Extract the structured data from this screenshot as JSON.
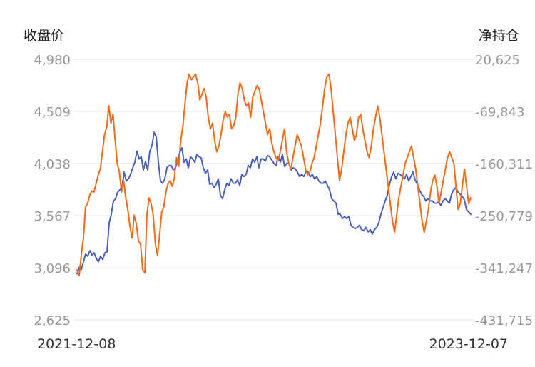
{
  "chart_data": {
    "type": "line",
    "left_axis_title": "收盘价",
    "right_axis_title": "净持仓",
    "x_start_label": "2021-12-08",
    "x_end_label": "2023-12-07",
    "left_ticks": [
      "4,980",
      "4,509",
      "4,038",
      "3,567",
      "3,096",
      "2,625"
    ],
    "right_ticks": [
      "20,625",
      "-69,843",
      "-160,311",
      "-250,779",
      "-341,247",
      "-431,715"
    ],
    "left_range": [
      2625,
      4980
    ],
    "right_range": [
      -431715,
      20625
    ],
    "grid": true,
    "series": [
      {
        "axis": "left",
        "color": "#4a5fc1",
        "values": [
          3040,
          3100,
          3080,
          3150,
          3220,
          3200,
          3250,
          3210,
          3230,
          3180,
          3150,
          3200,
          3170,
          3230,
          3240,
          3500,
          3580,
          3700,
          3720,
          3780,
          3800,
          3820,
          3960,
          3880,
          3900,
          3940,
          4000,
          4050,
          4150,
          4080,
          4100,
          3980,
          4060,
          3980,
          4150,
          4200,
          4320,
          4280,
          4050,
          3880,
          3860,
          3900,
          4000,
          4020,
          4020,
          3980,
          4000,
          4060,
          4140,
          4180,
          4050,
          4080,
          4000,
          4100,
          4080,
          4050,
          4120,
          4100,
          4090,
          4000,
          3950,
          3980,
          3850,
          3860,
          3820,
          3850,
          3900,
          3750,
          3720,
          3800,
          3860,
          3840,
          3900,
          3860,
          3860,
          3890,
          3840,
          3940,
          3920,
          3940,
          4020,
          4000,
          4080,
          4050,
          4100,
          4000,
          4080,
          4080,
          4060,
          4110,
          4100,
          4070,
          4040,
          4020,
          4100,
          4050,
          4120,
          4010,
          4040,
          4040,
          3980,
          4000,
          3990,
          3960,
          3920,
          3940,
          3920,
          3970,
          3960,
          3920,
          3940,
          3900,
          3920,
          3880,
          3860,
          3860,
          3880,
          3840,
          3800,
          3720,
          3700,
          3680,
          3580,
          3580,
          3540,
          3560,
          3540,
          3560,
          3480,
          3460,
          3450,
          3460,
          3480,
          3440,
          3430,
          3460,
          3420,
          3440,
          3400,
          3440,
          3460,
          3500,
          3580,
          3640,
          3700,
          3750,
          3850,
          3920,
          3960,
          3900,
          3950,
          3940,
          3920,
          3900,
          3940,
          3880,
          3920,
          3960,
          3890,
          3850,
          3800,
          3760,
          3740,
          3700,
          3720,
          3700,
          3700,
          3680,
          3680,
          3690,
          3660,
          3700,
          3720,
          3700,
          3680,
          3760,
          3800,
          3820,
          3780,
          3760,
          3740,
          3710,
          3620,
          3600,
          3580
        ]
      },
      {
        "axis": "right",
        "color": "#f36b18",
        "values": [
          -345000,
          -355000,
          -320000,
          -290000,
          -235000,
          -230000,
          -215000,
          -208000,
          -210000,
          -195000,
          -180000,
          -170000,
          -140000,
          -110000,
          -98000,
          -60000,
          -90000,
          -75000,
          -120000,
          -160000,
          -175000,
          -210000,
          -190000,
          -220000,
          -240000,
          -270000,
          -290000,
          -250000,
          -265000,
          -295000,
          -300000,
          -345000,
          -350000,
          -250000,
          -220000,
          -230000,
          -250000,
          -300000,
          -320000,
          -285000,
          -245000,
          -235000,
          -210000,
          -195000,
          -190000,
          -200000,
          -185000,
          -150000,
          -165000,
          -120000,
          -95000,
          -55000,
          -20000,
          -5000,
          -15000,
          -10000,
          -5000,
          -20000,
          -50000,
          -40000,
          -30000,
          -45000,
          -80000,
          -100000,
          -90000,
          -120000,
          -140000,
          -130000,
          -110000,
          -85000,
          -70000,
          -80000,
          -75000,
          -100000,
          -95000,
          -80000,
          -40000,
          -20000,
          -30000,
          -50000,
          -60000,
          -55000,
          -80000,
          -45000,
          -35000,
          -25000,
          -30000,
          -50000,
          -70000,
          -90000,
          -110000,
          -100000,
          -125000,
          -140000,
          -150000,
          -155000,
          -140000,
          -120000,
          -100000,
          -140000,
          -160000,
          -170000,
          -150000,
          -130000,
          -110000,
          -120000,
          -130000,
          -150000,
          -170000,
          -180000,
          -175000,
          -160000,
          -150000,
          -130000,
          -110000,
          -90000,
          -60000,
          -30000,
          -10000,
          -5000,
          -30000,
          -70000,
          -110000,
          -150000,
          -190000,
          -170000,
          -140000,
          -110000,
          -90000,
          -80000,
          -100000,
          -120000,
          -110000,
          -80000,
          -75000,
          -100000,
          -120000,
          -140000,
          -150000,
          -130000,
          -100000,
          -80000,
          -60000,
          -80000,
          -110000,
          -140000,
          -170000,
          -200000,
          -230000,
          -260000,
          -280000,
          -250000,
          -220000,
          -200000,
          -180000,
          -160000,
          -150000,
          -140000,
          -130000,
          -150000,
          -170000,
          -200000,
          -230000,
          -260000,
          -280000,
          -260000,
          -240000,
          -210000,
          -190000,
          -180000,
          -200000,
          -230000,
          -210000,
          -190000,
          -170000,
          -150000,
          -140000,
          -150000,
          -160000,
          -200000,
          -240000,
          -230000,
          -200000,
          -170000,
          -200000,
          -230000,
          -220000
        ]
      }
    ]
  }
}
